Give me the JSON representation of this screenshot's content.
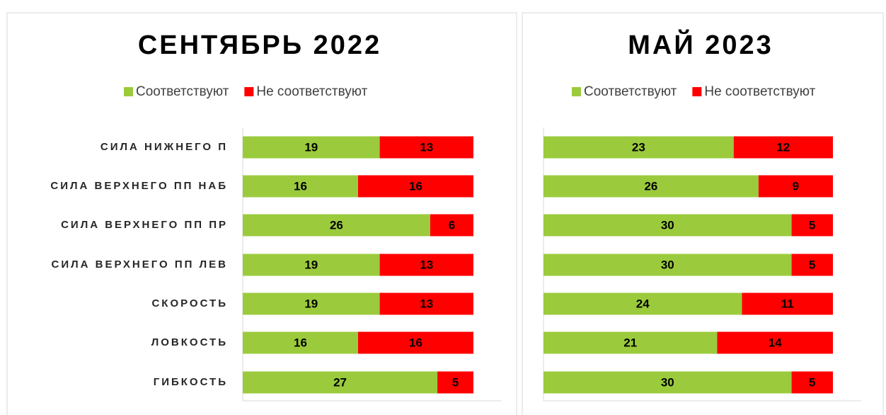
{
  "chart_data": [
    {
      "type": "stacked-bar-horizontal",
      "title": "СЕНТЯБРЬ 2022",
      "categories": [
        "СИЛА НИЖНЕГО П",
        "СИЛА ВЕРХНЕГО ПП НАБ",
        "СИЛА ВЕРХНЕГО ПП ПР",
        "СИЛА ВЕРХНЕГО ПП ЛЕВ",
        "СКОРОСТЬ",
        "ЛОВКОСТЬ",
        "ГИБКОСТЬ"
      ],
      "series": [
        {
          "name": "Соответствуют",
          "color": "#9bcb3c",
          "values": [
            19,
            16,
            26,
            19,
            19,
            16,
            27
          ]
        },
        {
          "name": "Не соответствуют",
          "color": "#ff0000",
          "values": [
            13,
            16,
            6,
            13,
            13,
            16,
            5
          ]
        }
      ],
      "xlim": [
        0,
        32
      ],
      "legend": "top"
    },
    {
      "type": "stacked-bar-horizontal",
      "title": "МАЙ 2023",
      "categories": [
        null,
        null,
        null,
        null,
        null,
        null,
        null
      ],
      "series": [
        {
          "name": "Соответствуют",
          "color": "#9bcb3c",
          "values": [
            23,
            26,
            30,
            30,
            24,
            21,
            30
          ]
        },
        {
          "name": "Не соответствуют",
          "color": "#ff0000",
          "values": [
            12,
            9,
            5,
            5,
            11,
            14,
            5
          ]
        }
      ],
      "xlim": [
        0,
        35
      ],
      "legend": "top"
    }
  ]
}
